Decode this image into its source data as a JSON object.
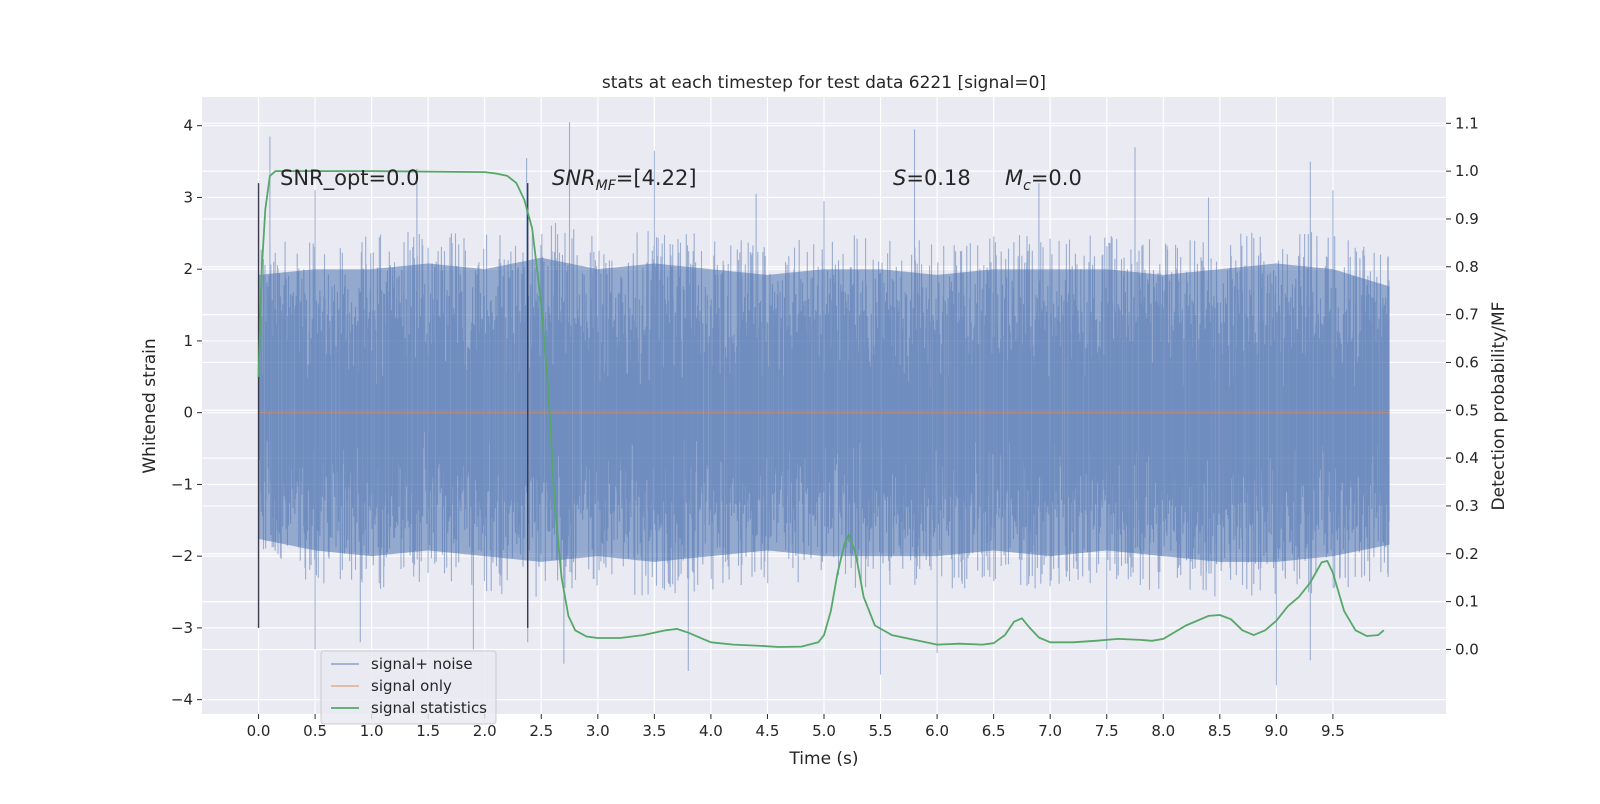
{
  "chart_data": {
    "type": "line",
    "title": "stats at each timestep for test data 6221 [signal=0]",
    "xlabel": "Time (s)",
    "ylabel": "Whitened strain",
    "y2label": "Detection probability/MF",
    "xlim": [
      -0.5,
      10.5
    ],
    "ylim": [
      -4.2,
      4.4
    ],
    "y2lim": [
      -0.135,
      1.155
    ],
    "xticks": [
      0.0,
      0.5,
      1.0,
      1.5,
      2.0,
      2.5,
      3.0,
      3.5,
      4.0,
      4.5,
      5.0,
      5.5,
      6.0,
      6.5,
      7.0,
      7.5,
      8.0,
      8.5,
      9.0,
      9.5
    ],
    "xtick_labels": [
      "0.0",
      "0.5",
      "1.0",
      "1.5",
      "2.0",
      "2.5",
      "3.0",
      "3.5",
      "4.0",
      "4.5",
      "5.0",
      "5.5",
      "6.0",
      "6.5",
      "7.0",
      "7.5",
      "8.0",
      "8.5",
      "9.0",
      "9.5"
    ],
    "yticks": [
      -4,
      -3,
      -2,
      -1,
      0,
      1,
      2,
      3,
      4
    ],
    "ytick_labels": [
      "−4",
      "−3",
      "−2",
      "−1",
      "0",
      "1",
      "2",
      "3",
      "4"
    ],
    "y2ticks": [
      0.0,
      0.1,
      0.2,
      0.3,
      0.4,
      0.5,
      0.6,
      0.7,
      0.8,
      0.9,
      1.0,
      1.1
    ],
    "y2tick_labels": [
      "0.0",
      "0.1",
      "0.2",
      "0.3",
      "0.4",
      "0.5",
      "0.6",
      "0.7",
      "0.8",
      "0.9",
      "1.0",
      "1.1"
    ],
    "grid": true,
    "legend_position": "lower-left",
    "annotations": {
      "snr_opt": "SNR_opt=0.0",
      "snr_mf_prefix": "SNR",
      "snr_mf_sub": "MF",
      "snr_mf_suffix": "=[4.22]",
      "s_prefix": "S",
      "s_suffix": "=0.18",
      "mc_prefix": "M",
      "mc_sub": "c",
      "mc_suffix": "=0.0"
    },
    "vlines": [
      {
        "x": 0.0,
        "ymin": -3.0,
        "ymax": 3.2
      },
      {
        "x": 2.38,
        "ymin": -3.0,
        "ymax": 3.2
      }
    ],
    "series": [
      {
        "name": "signal+ noise",
        "color": "#4c72b0",
        "alpha": 0.5,
        "axis": "left",
        "x_range": [
          0.0,
          10.0
        ],
        "envelope_upper": [
          [
            0,
            2.4
          ],
          [
            0.5,
            2.5
          ],
          [
            1.0,
            2.5
          ],
          [
            1.5,
            2.6
          ],
          [
            2.0,
            2.5
          ],
          [
            2.5,
            2.7
          ],
          [
            3.0,
            2.5
          ],
          [
            3.5,
            2.6
          ],
          [
            4.0,
            2.5
          ],
          [
            4.5,
            2.4
          ],
          [
            5.0,
            2.5
          ],
          [
            5.5,
            2.5
          ],
          [
            6.0,
            2.4
          ],
          [
            6.5,
            2.5
          ],
          [
            7.0,
            2.5
          ],
          [
            7.5,
            2.5
          ],
          [
            8.0,
            2.4
          ],
          [
            8.5,
            2.5
          ],
          [
            9.0,
            2.6
          ],
          [
            9.5,
            2.5
          ],
          [
            10.0,
            2.2
          ]
        ],
        "envelope_lower": [
          [
            0,
            -2.2
          ],
          [
            0.5,
            -2.4
          ],
          [
            1.0,
            -2.5
          ],
          [
            1.5,
            -2.4
          ],
          [
            2.0,
            -2.5
          ],
          [
            2.5,
            -2.6
          ],
          [
            3.0,
            -2.5
          ],
          [
            3.5,
            -2.6
          ],
          [
            4.0,
            -2.5
          ],
          [
            4.5,
            -2.4
          ],
          [
            5.0,
            -2.5
          ],
          [
            5.5,
            -2.5
          ],
          [
            6.0,
            -2.5
          ],
          [
            6.5,
            -2.4
          ],
          [
            7.0,
            -2.5
          ],
          [
            7.5,
            -2.4
          ],
          [
            8.0,
            -2.5
          ],
          [
            8.5,
            -2.6
          ],
          [
            9.0,
            -2.6
          ],
          [
            9.5,
            -2.5
          ],
          [
            10.0,
            -2.3
          ]
        ],
        "peaks": [
          [
            0.1,
            3.85
          ],
          [
            0.5,
            3.1
          ],
          [
            1.4,
            3.4
          ],
          [
            2.37,
            3.55
          ],
          [
            2.75,
            4.05
          ],
          [
            3.5,
            3.65
          ],
          [
            4.4,
            3.05
          ],
          [
            5.0,
            2.95
          ],
          [
            5.8,
            3.95
          ],
          [
            6.9,
            3.2
          ],
          [
            7.75,
            3.7
          ],
          [
            8.4,
            3.0
          ],
          [
            9.3,
            3.5
          ],
          [
            9.5,
            3.1
          ]
        ],
        "troughs": [
          [
            0.5,
            -3.3
          ],
          [
            0.9,
            -3.2
          ],
          [
            1.9,
            -3.3
          ],
          [
            2.38,
            -3.2
          ],
          [
            2.7,
            -3.5
          ],
          [
            3.8,
            -3.6
          ],
          [
            5.5,
            -3.65
          ],
          [
            6.0,
            -3.35
          ],
          [
            7.5,
            -3.3
          ],
          [
            9.0,
            -3.8
          ],
          [
            9.3,
            -3.45
          ]
        ]
      },
      {
        "name": "signal only",
        "color": "#dd8452",
        "alpha": 0.6,
        "axis": "left",
        "x": [
          0.0,
          10.0
        ],
        "y": [
          0.0,
          0.0
        ]
      },
      {
        "name": "signal statistics",
        "color": "#55a868",
        "axis": "right",
        "x": [
          0.0,
          0.03,
          0.06,
          0.1,
          0.15,
          0.25,
          0.5,
          1.0,
          1.5,
          2.0,
          2.1,
          2.2,
          2.28,
          2.35,
          2.42,
          2.5,
          2.56,
          2.62,
          2.68,
          2.74,
          2.8,
          2.9,
          3.0,
          3.2,
          3.4,
          3.6,
          3.7,
          3.8,
          4.0,
          4.2,
          4.4,
          4.6,
          4.8,
          4.95,
          5.0,
          5.06,
          5.12,
          5.18,
          5.22,
          5.28,
          5.35,
          5.45,
          5.6,
          5.8,
          6.0,
          6.2,
          6.4,
          6.5,
          6.6,
          6.68,
          6.75,
          6.82,
          6.9,
          7.0,
          7.2,
          7.4,
          7.6,
          7.8,
          7.9,
          8.0,
          8.2,
          8.4,
          8.5,
          8.6,
          8.7,
          8.8,
          8.9,
          9.0,
          9.1,
          9.2,
          9.3,
          9.4,
          9.45,
          9.5,
          9.6,
          9.7,
          9.8,
          9.9,
          9.95
        ],
        "y": [
          0.57,
          0.8,
          0.92,
          0.99,
          1.0,
          1.0,
          1.0,
          1.0,
          0.999,
          0.998,
          0.995,
          0.99,
          0.975,
          0.94,
          0.88,
          0.72,
          0.55,
          0.3,
          0.15,
          0.07,
          0.04,
          0.027,
          0.024,
          0.024,
          0.03,
          0.04,
          0.043,
          0.035,
          0.015,
          0.01,
          0.008,
          0.005,
          0.006,
          0.015,
          0.03,
          0.08,
          0.16,
          0.22,
          0.24,
          0.2,
          0.11,
          0.05,
          0.03,
          0.02,
          0.01,
          0.012,
          0.01,
          0.013,
          0.03,
          0.058,
          0.065,
          0.045,
          0.025,
          0.015,
          0.015,
          0.018,
          0.022,
          0.02,
          0.018,
          0.022,
          0.05,
          0.07,
          0.072,
          0.063,
          0.04,
          0.03,
          0.04,
          0.06,
          0.09,
          0.11,
          0.14,
          0.182,
          0.185,
          0.16,
          0.08,
          0.04,
          0.028,
          0.03,
          0.04
        ]
      }
    ]
  }
}
